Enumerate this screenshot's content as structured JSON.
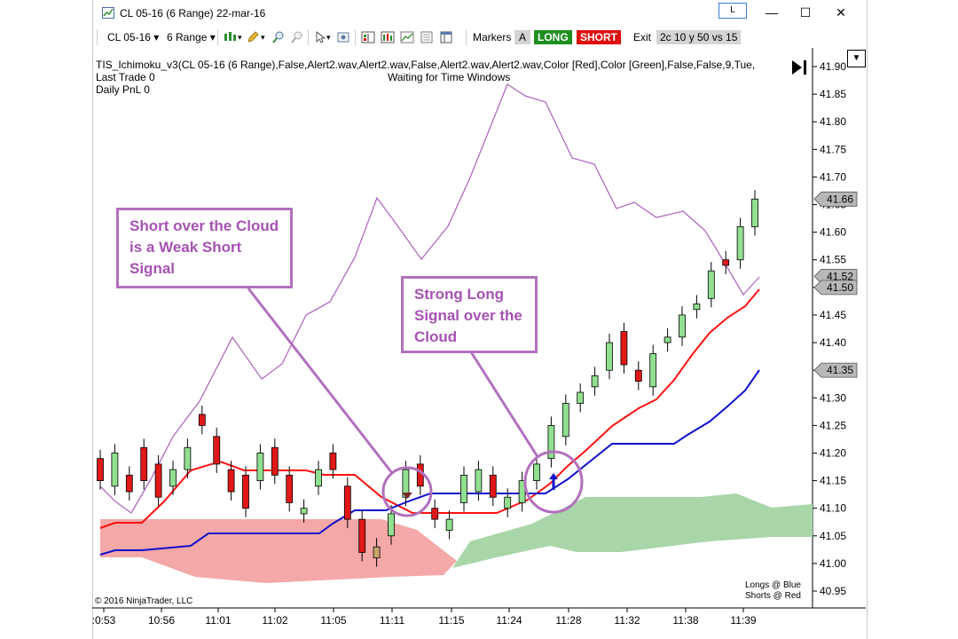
{
  "window": {
    "title": "CL 05-16 (6 Range)  22-mar-16",
    "pin_label": "L",
    "minimize": "—",
    "maximize": "☐",
    "close": "✕"
  },
  "toolbar": {
    "instrument": "CL 05-16",
    "period": "6 Range",
    "markers_label": "Markers",
    "a_label": "A",
    "long_label": "LONG",
    "short_label": "SHORT",
    "exit_label": "Exit",
    "strategy_label": "2c 10 y 50 vs 15"
  },
  "indicator": {
    "line": "TIS_Ichimoku_v3(CL 05-16 (6 Range),False,Alert2.wav,Alert2.wav,False,Alert2.wav,Alert2.wav,Color [Red],Color [Green],False,False,9,Tue,",
    "last_trade": "Last Trade 0",
    "daily_pnl": "Daily PnL  0",
    "status": "Waiting for Time Windows"
  },
  "callouts": {
    "weak_short": "Short over the Cloud is a Weak Short Signal",
    "strong_long": "Strong Long Signal over the Cloud"
  },
  "footer": {
    "copyright": "© 2016 NinjaTrader, LLC",
    "legend_long": "Longs @   Blue",
    "legend_short": "Shorts @   Red"
  },
  "colors": {
    "tenkan": "#ff1010",
    "kijun": "#1010cc",
    "chikou": "#b06ac0",
    "cloud_bear": "#f4a8a8",
    "cloud_bull": "#a8d6a8",
    "up_candle": "#90e090",
    "down_candle": "#e01818",
    "callout": "#b270be"
  },
  "chart_data": {
    "type": "candlestick",
    "ylim": [
      40.95,
      41.9
    ],
    "y_ticks": [
      "41.90",
      "41.85",
      "41.80",
      "41.75",
      "41.70",
      "41.65",
      "41.60",
      "41.55",
      "41.50",
      "41.45",
      "41.40",
      "41.35",
      "41.30",
      "41.25",
      "41.20",
      "41.15",
      "41.10",
      "41.05",
      "41.00",
      "40.95"
    ],
    "x_ticks": [
      ":0:53",
      "10:56",
      "11:01",
      "11:02",
      "11:05",
      "11:11",
      "11:15",
      "11:24",
      "11:28",
      "11:32",
      "11:38",
      "11:39"
    ],
    "price_labels": [
      "41.66",
      "41.52",
      "41.50",
      "41.35"
    ],
    "candles": [
      {
        "o": 41.19,
        "c": 41.15
      },
      {
        "o": 41.14,
        "c": 41.2
      },
      {
        "o": 41.16,
        "c": 41.13
      },
      {
        "o": 41.21,
        "c": 41.15
      },
      {
        "o": 41.18,
        "c": 41.12
      },
      {
        "o": 41.14,
        "c": 41.17
      },
      {
        "o": 41.17,
        "c": 41.21
      },
      {
        "o": 41.27,
        "c": 41.25
      },
      {
        "o": 41.23,
        "c": 41.18
      },
      {
        "o": 41.17,
        "c": 41.13
      },
      {
        "o": 41.16,
        "c": 41.1
      },
      {
        "o": 41.15,
        "c": 41.2
      },
      {
        "o": 41.21,
        "c": 41.16
      },
      {
        "o": 41.16,
        "c": 41.11
      },
      {
        "o": 41.09,
        "c": 41.1
      },
      {
        "o": 41.14,
        "c": 41.17
      },
      {
        "o": 41.2,
        "c": 41.17
      },
      {
        "o": 41.14,
        "c": 41.08
      },
      {
        "o": 41.08,
        "c": 41.02
      },
      {
        "o": 41.01,
        "c": 41.03
      },
      {
        "o": 41.05,
        "c": 41.09
      },
      {
        "o": 41.12,
        "c": 41.17
      },
      {
        "o": 41.18,
        "c": 41.14
      },
      {
        "o": 41.1,
        "c": 41.08
      },
      {
        "o": 41.06,
        "c": 41.08
      },
      {
        "o": 41.11,
        "c": 41.16
      },
      {
        "o": 41.13,
        "c": 41.17
      },
      {
        "o": 41.16,
        "c": 41.12
      },
      {
        "o": 41.1,
        "c": 41.12
      },
      {
        "o": 41.11,
        "c": 41.15
      },
      {
        "o": 41.15,
        "c": 41.18
      },
      {
        "o": 41.19,
        "c": 41.25
      },
      {
        "o": 41.23,
        "c": 41.29
      },
      {
        "o": 41.29,
        "c": 41.31
      },
      {
        "o": 41.32,
        "c": 41.34
      },
      {
        "o": 41.35,
        "c": 41.4
      },
      {
        "o": 41.42,
        "c": 41.36
      },
      {
        "o": 41.35,
        "c": 41.33
      },
      {
        "o": 41.32,
        "c": 41.38
      },
      {
        "o": 41.4,
        "c": 41.41
      },
      {
        "o": 41.41,
        "c": 41.45
      },
      {
        "o": 41.46,
        "c": 41.47
      },
      {
        "o": 41.48,
        "c": 41.53
      },
      {
        "o": 41.55,
        "c": 41.54
      },
      {
        "o": 41.55,
        "c": 41.61
      },
      {
        "o": 41.61,
        "c": 41.66
      }
    ]
  }
}
